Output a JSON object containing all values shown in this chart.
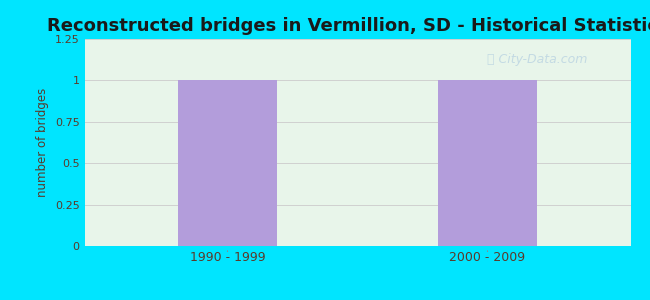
{
  "title": "Reconstructed bridges in Vermillion, SD - Historical Statistics",
  "categories": [
    "1990 - 1999",
    "2000 - 2009"
  ],
  "values": [
    1,
    1
  ],
  "bar_color": "#b39ddb",
  "ylabel": "number of bridges",
  "ylim": [
    0,
    1.25
  ],
  "yticks": [
    0,
    0.25,
    0.5,
    0.75,
    1,
    1.25
  ],
  "ytick_labels": [
    "0",
    "0.25",
    "0.5",
    "0.75",
    "1",
    "1.25"
  ],
  "background_outer": "#00e5ff",
  "background_inner_left": "#d4edda",
  "background_inner_right": "#f0f8f0",
  "title_fontsize": 13,
  "title_color": "#1a1a1a",
  "label_color": "#5a3a2a",
  "grid_color": "#d0d0d0",
  "bar_width": 0.38,
  "watermark_color": "#b0cce0",
  "watermark_alpha": 0.65
}
